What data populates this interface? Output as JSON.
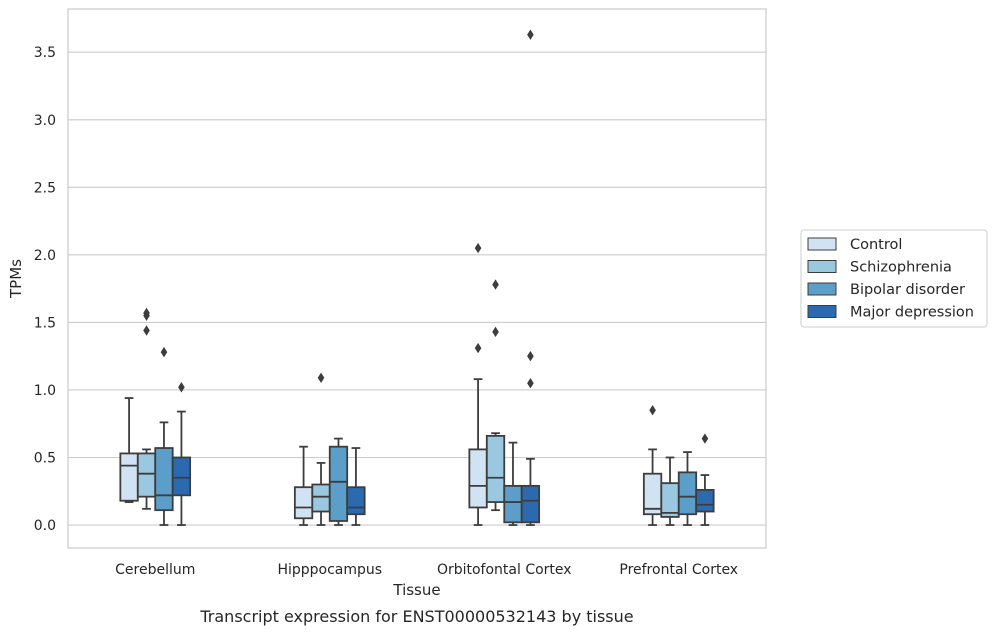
{
  "caption": "Transcript expression for ENST00000532143 by tissue",
  "chart_data": {
    "type": "boxplot",
    "xlabel": "Tissue",
    "ylabel": "TPMs",
    "ylim": [
      -0.17,
      3.82
    ],
    "yticks": [
      0.0,
      0.5,
      1.0,
      1.5,
      2.0,
      2.5,
      3.0,
      3.5
    ],
    "ytick_labels": [
      "0.0",
      "0.5",
      "1.0",
      "1.5",
      "2.0",
      "2.5",
      "3.0",
      "3.5"
    ],
    "grid": "horizontal",
    "legend_position": "right",
    "categories": [
      "Cerebellum",
      "Hipppocampus",
      "Orbitofontal Cortex",
      "Prefrontal Cortex"
    ],
    "series": [
      {
        "name": "Control",
        "color": "#d1e2f2",
        "boxes": [
          {
            "whislo": 0.17,
            "q1": 0.18,
            "med": 0.44,
            "q3": 0.53,
            "whishi": 0.94,
            "fliers": []
          },
          {
            "whislo": 0.0,
            "q1": 0.05,
            "med": 0.13,
            "q3": 0.28,
            "whishi": 0.58,
            "fliers": []
          },
          {
            "whislo": 0.0,
            "q1": 0.13,
            "med": 0.29,
            "q3": 0.56,
            "whishi": 1.08,
            "fliers": [
              1.31,
              2.05
            ]
          },
          {
            "whislo": 0.0,
            "q1": 0.08,
            "med": 0.12,
            "q3": 0.38,
            "whishi": 0.56,
            "fliers": [
              0.85
            ]
          }
        ]
      },
      {
        "name": "Schizophrenia",
        "color": "#9ac8e0",
        "boxes": [
          {
            "whislo": 0.12,
            "q1": 0.21,
            "med": 0.38,
            "q3": 0.53,
            "whishi": 0.56,
            "fliers": [
              1.44,
              1.55,
              1.57
            ]
          },
          {
            "whislo": 0.0,
            "q1": 0.1,
            "med": 0.21,
            "q3": 0.3,
            "whishi": 0.46,
            "fliers": [
              1.09
            ]
          },
          {
            "whislo": 0.11,
            "q1": 0.17,
            "med": 0.35,
            "q3": 0.66,
            "whishi": 0.68,
            "fliers": [
              1.43,
              1.78
            ]
          },
          {
            "whislo": 0.0,
            "q1": 0.06,
            "med": 0.09,
            "q3": 0.31,
            "whishi": 0.5,
            "fliers": []
          }
        ]
      },
      {
        "name": "Bipolar disorder",
        "color": "#5a9ec9",
        "boxes": [
          {
            "whislo": 0.0,
            "q1": 0.11,
            "med": 0.22,
            "q3": 0.57,
            "whishi": 0.76,
            "fliers": [
              1.28
            ]
          },
          {
            "whislo": 0.0,
            "q1": 0.03,
            "med": 0.32,
            "q3": 0.58,
            "whishi": 0.64,
            "fliers": []
          },
          {
            "whislo": 0.0,
            "q1": 0.02,
            "med": 0.17,
            "q3": 0.29,
            "whishi": 0.61,
            "fliers": []
          },
          {
            "whislo": 0.0,
            "q1": 0.08,
            "med": 0.21,
            "q3": 0.39,
            "whishi": 0.54,
            "fliers": []
          }
        ]
      },
      {
        "name": "Major depression",
        "color": "#2b6aae",
        "boxes": [
          {
            "whislo": 0.0,
            "q1": 0.22,
            "med": 0.35,
            "q3": 0.5,
            "whishi": 0.84,
            "fliers": [
              1.02
            ]
          },
          {
            "whislo": 0.0,
            "q1": 0.08,
            "med": 0.13,
            "q3": 0.28,
            "whishi": 0.57,
            "fliers": []
          },
          {
            "whislo": 0.0,
            "q1": 0.02,
            "med": 0.18,
            "q3": 0.29,
            "whishi": 0.49,
            "fliers": [
              1.05,
              1.25,
              3.63
            ]
          },
          {
            "whislo": 0.0,
            "q1": 0.1,
            "med": 0.15,
            "q3": 0.26,
            "whishi": 0.37,
            "fliers": [
              0.64
            ]
          }
        ]
      }
    ]
  }
}
